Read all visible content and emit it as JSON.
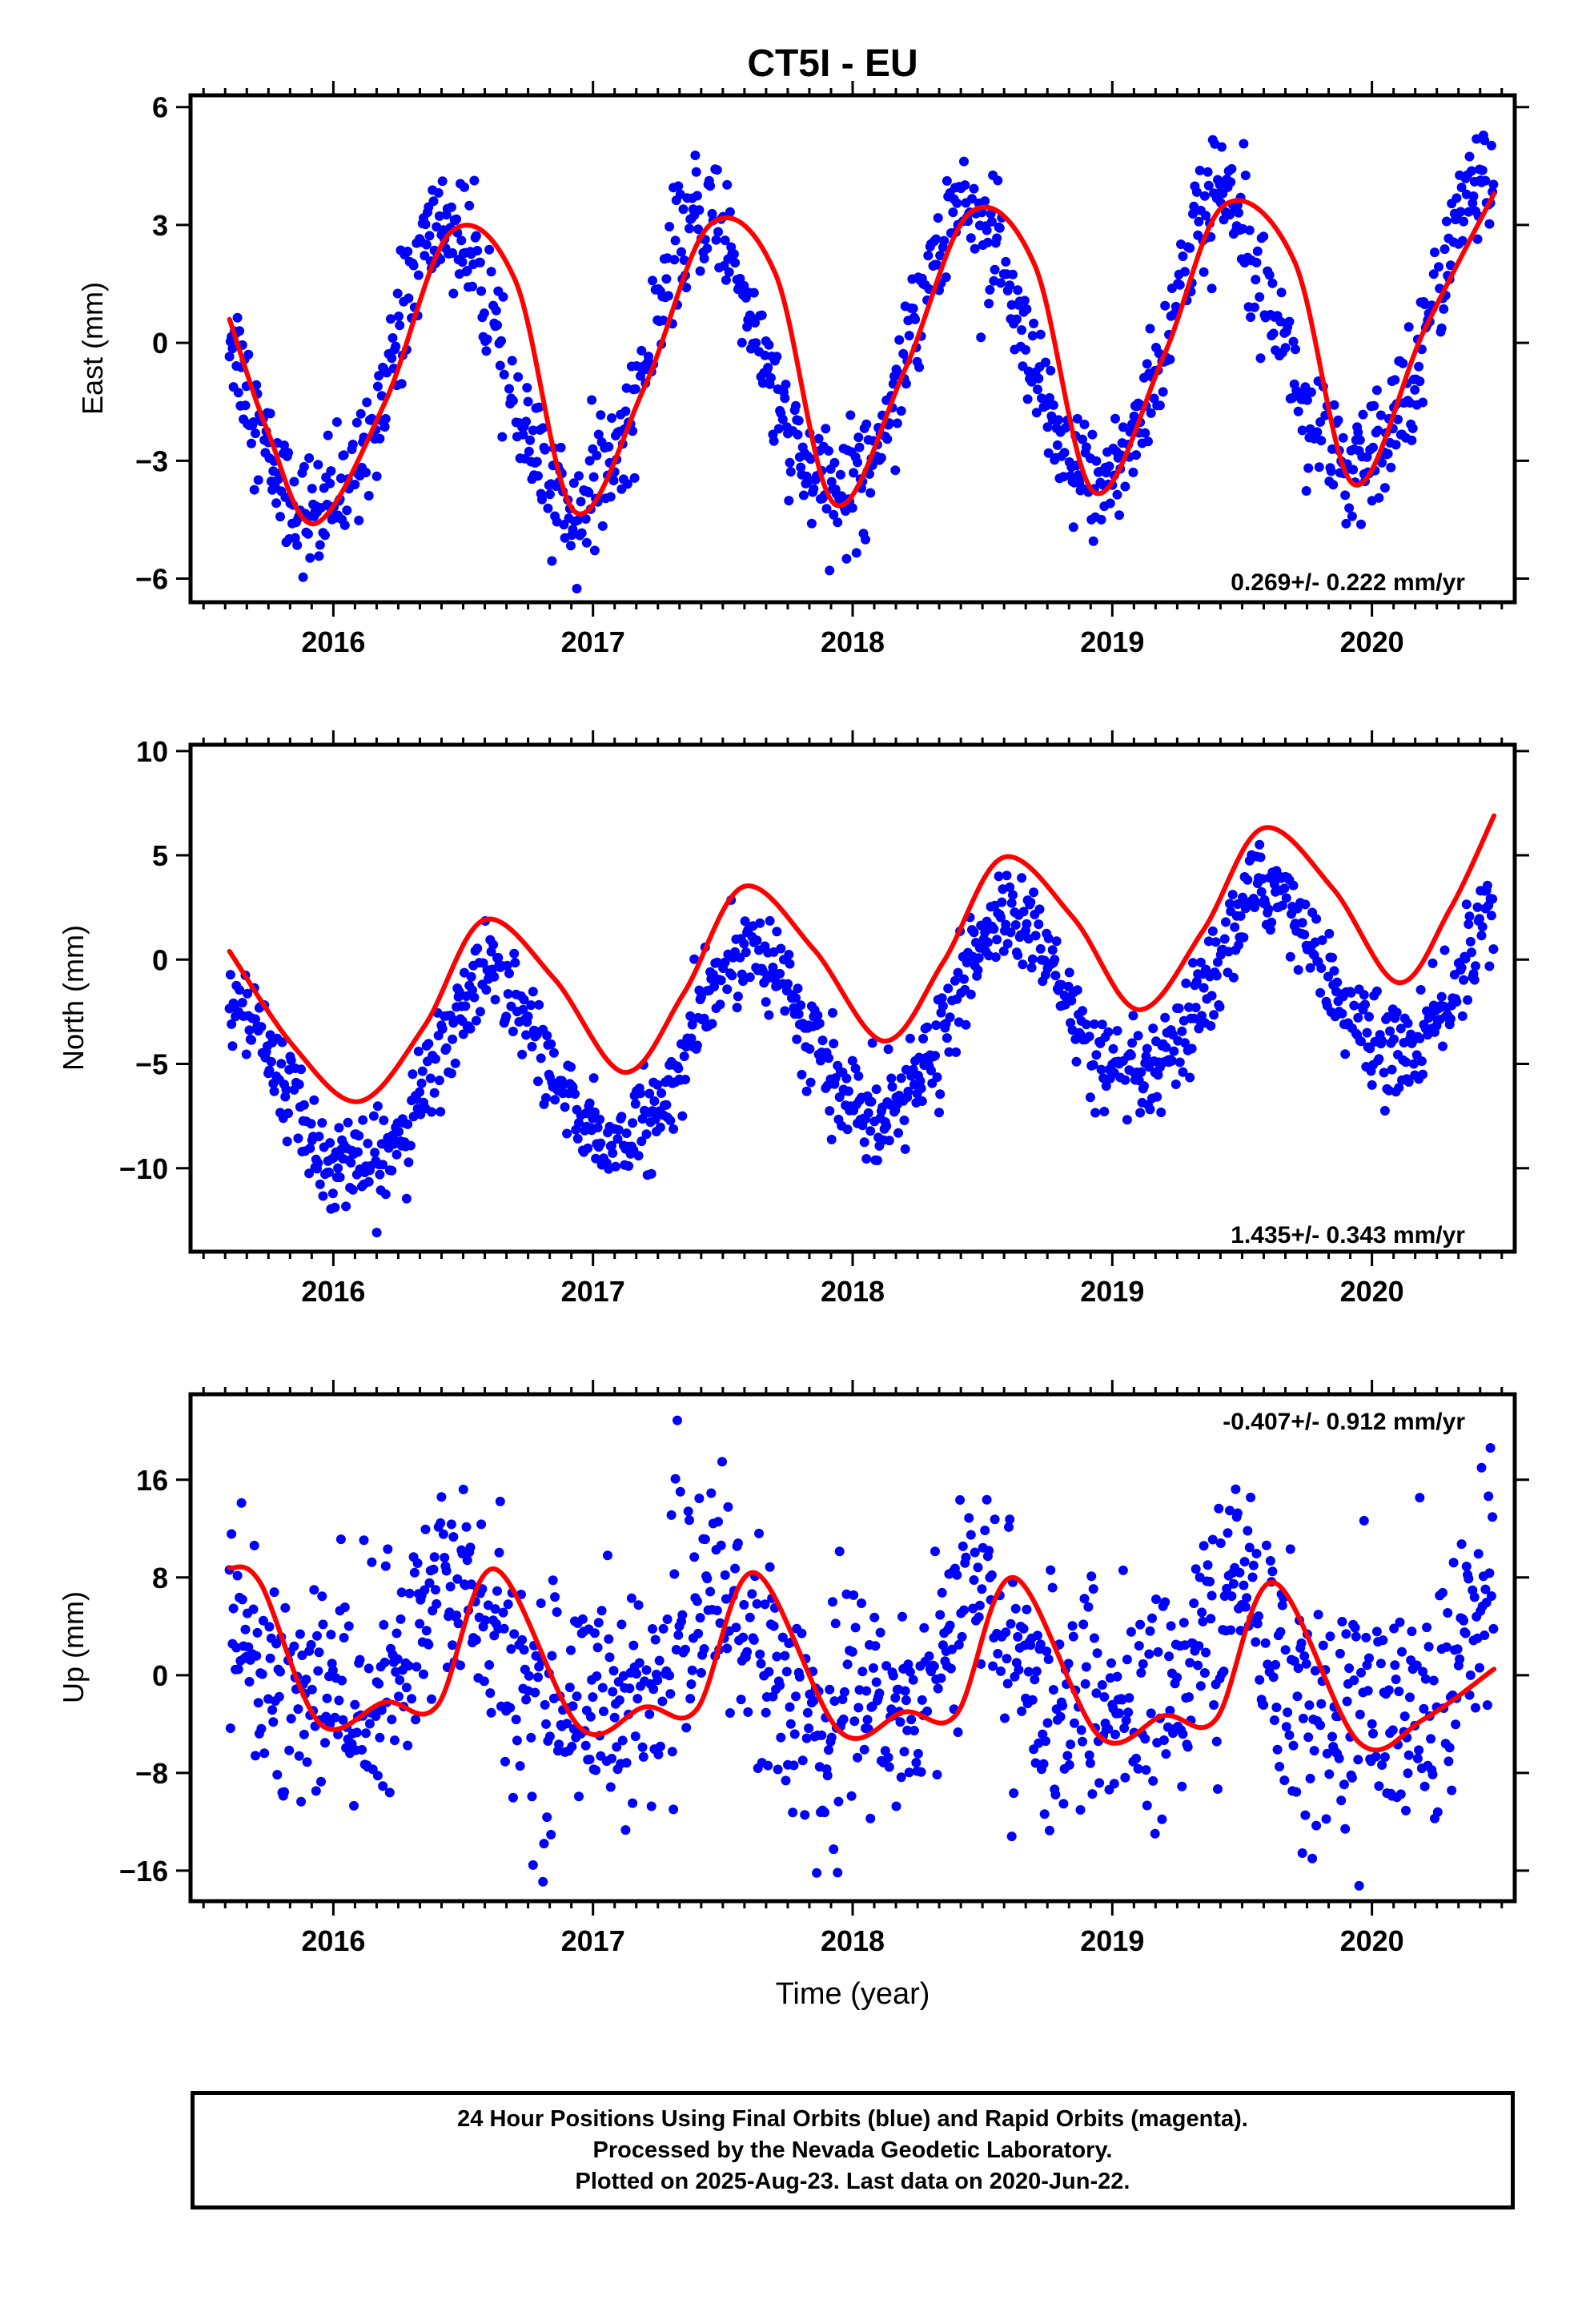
{
  "title": "CT5I - EU",
  "colors": {
    "points": "#0000ff",
    "fit": "#ff0000",
    "axis": "#000000"
  },
  "x_axis": {
    "label": "Time (year)",
    "range": [
      2015.45,
      2020.55
    ],
    "ticks": [
      2016,
      2017,
      2018,
      2019,
      2020
    ],
    "tick_labels": [
      "2016",
      "2017",
      "2018",
      "2019",
      "2020"
    ]
  },
  "chart_data": [
    {
      "type": "scatter",
      "component": "east",
      "ylabel": "East (mm)",
      "ylim": [
        -6.6,
        6.3
      ],
      "yticks": [
        -6,
        -3,
        0,
        3,
        6
      ],
      "ytick_labels": [
        "−6",
        "−3",
        "0",
        "3",
        "6"
      ],
      "rate_label": "0.269+/- 0.222 mm/yr",
      "rate_position": "bottom-right",
      "data_span": [
        2015.6,
        2020.47
      ],
      "model": {
        "trend": 0.269,
        "offset": -0.5,
        "annual_amp": 3.6,
        "annual_phase": 2015.93,
        "semiannual_amp": 0.3,
        "noise_sd": 0.75
      },
      "fit_curve": {
        "x": [
          2015.6,
          2015.75,
          2015.93,
          2016.2,
          2016.45,
          2016.7,
          2016.93,
          2017.2,
          2017.45,
          2017.7,
          2017.93,
          2018.2,
          2018.45,
          2018.7,
          2018.93,
          2019.2,
          2019.43,
          2019.7,
          2019.93,
          2020.2,
          2020.47
        ],
        "y": [
          0.6,
          -2.3,
          -4.6,
          -1.5,
          2.8,
          1.6,
          -4.3,
          -1.1,
          3.0,
          1.8,
          -4.1,
          -0.7,
          3.3,
          2.0,
          -3.8,
          -0.3,
          3.5,
          2.1,
          -3.6,
          0.3,
          3.8
        ]
      }
    },
    {
      "type": "scatter",
      "component": "north",
      "ylabel": "North (mm)",
      "ylim": [
        -14,
        10.3
      ],
      "yticks": [
        -10,
        -5,
        0,
        5,
        10
      ],
      "ytick_labels": [
        "−10",
        "−5",
        "0",
        "5",
        "10"
      ],
      "rate_label": "1.435+/- 0.343 mm/yr",
      "rate_position": "bottom-right",
      "data_span": [
        2015.6,
        2020.47
      ],
      "model": {
        "trend": 1.435,
        "offset": -3.5,
        "annual_amp": 4.3,
        "annual_phase": 2016.1,
        "semiannual_amp": 0.4,
        "noise_sd": 1.1
      },
      "fit_curve": {
        "x": [
          2015.6,
          2015.85,
          2016.1,
          2016.35,
          2016.58,
          2016.85,
          2017.12,
          2017.35,
          2017.58,
          2017.85,
          2018.12,
          2018.35,
          2018.58,
          2018.85,
          2019.1,
          2019.35,
          2019.58,
          2019.85,
          2020.1,
          2020.3,
          2020.47
        ],
        "y": [
          0.4,
          -4.2,
          -6.8,
          -3.2,
          1.9,
          -0.9,
          -5.4,
          -1.6,
          3.5,
          0.5,
          -3.9,
          -0.1,
          4.9,
          2.0,
          -2.4,
          1.4,
          6.3,
          3.4,
          -1.1,
          2.4,
          6.9
        ]
      }
    },
    {
      "type": "scatter",
      "component": "up",
      "ylabel": "Up (mm)",
      "ylim": [
        -18.5,
        23
      ],
      "yticks": [
        -16,
        -8,
        0,
        8,
        16
      ],
      "ytick_labels": [
        "−16",
        "−8",
        "0",
        "8",
        "16"
      ],
      "rate_label": "-0.407+/- 0.912 mm/yr",
      "rate_position": "top-right",
      "data_span": [
        2015.6,
        2020.47
      ],
      "model": {
        "trend": -0.407,
        "offset": 0.5,
        "annual_amp": 4.6,
        "annual_phase": 2015.98,
        "semiannual_amp": 2.3,
        "noise_sd": 4.8
      },
      "fit_curve": {
        "x": [
          2015.6,
          2015.72,
          2015.95,
          2016.2,
          2016.4,
          2016.62,
          2016.95,
          2017.2,
          2017.4,
          2017.62,
          2017.95,
          2018.2,
          2018.4,
          2018.62,
          2018.95,
          2019.2,
          2019.4,
          2019.62,
          2019.95,
          2020.2,
          2020.47
        ],
        "y": [
          8.8,
          7.5,
          -4.0,
          -2.2,
          -2.5,
          8.7,
          -4.3,
          -2.6,
          -2.8,
          8.4,
          -4.6,
          -3.0,
          -3.2,
          8.0,
          -5.0,
          -3.3,
          -3.6,
          7.6,
          -5.5,
          -3.6,
          0.5
        ]
      }
    }
  ],
  "footer": {
    "line1": "24 Hour Positions Using Final Orbits (blue) and Rapid Orbits (magenta).",
    "line2": "Processed by the Nevada Geodetic Laboratory.",
    "line3": "Plotted on 2025-Aug-23. Last data on 2020-Jun-22."
  }
}
